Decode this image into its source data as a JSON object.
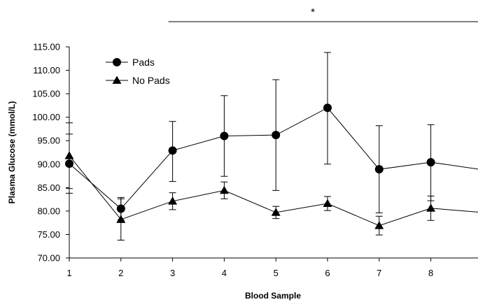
{
  "chart_data": {
    "type": "line",
    "title": "",
    "xlabel": "Blood Sample",
    "ylabel": "Plasma Glucose (mmol/L)",
    "x": [
      1,
      2,
      3,
      4,
      5,
      6,
      7,
      8,
      9
    ],
    "x_tick_labels": [
      "1",
      "2",
      "3",
      "4",
      "5",
      "6",
      "7",
      "8"
    ],
    "ylim": [
      70,
      115
    ],
    "y_ticks": [
      70,
      75,
      80,
      85,
      90,
      95,
      100,
      105,
      110,
      115
    ],
    "y_tick_labels": [
      "70.00",
      "75.00",
      "80.00",
      "85.00",
      "90.00",
      "95.00",
      "100.00",
      "105.00",
      "110.00",
      "115.00"
    ],
    "grid": false,
    "legend_position": "top-left",
    "series": [
      {
        "name": "Pads",
        "marker": "circle",
        "values": [
          90.1,
          80.5,
          92.9,
          96.0,
          96.2,
          102.0,
          88.9,
          90.4,
          88.8
        ],
        "err_lower": [
          83.8,
          78.1,
          86.3,
          87.4,
          84.4,
          90.0,
          79.6,
          82.2,
          null
        ],
        "err_upper": [
          96.4,
          82.9,
          99.1,
          104.6,
          108.0,
          113.8,
          98.2,
          98.4,
          null
        ]
      },
      {
        "name": "No Pads",
        "marker": "triangle",
        "values": [
          91.8,
          78.2,
          82.1,
          84.4,
          79.7,
          81.6,
          76.9,
          80.6,
          79.7
        ],
        "err_lower": [
          84.8,
          73.8,
          80.3,
          82.6,
          78.4,
          80.1,
          74.9,
          78.0,
          null
        ],
        "err_upper": [
          98.8,
          82.6,
          83.9,
          86.2,
          81.0,
          83.1,
          78.9,
          83.2,
          null
        ]
      }
    ],
    "annotation": {
      "text": "*",
      "span": [
        3,
        9
      ]
    }
  }
}
